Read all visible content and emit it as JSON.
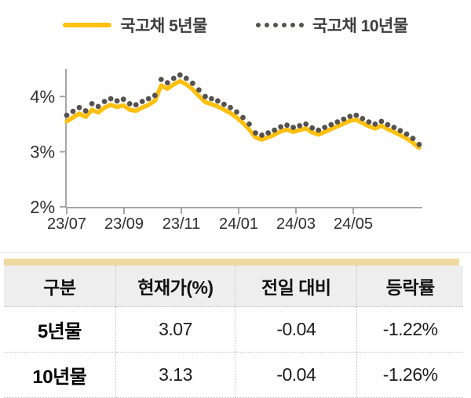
{
  "accent_colors": {
    "line_yellow": "#FFC010",
    "dot_gray": "#575150",
    "axis_gray": "#A6A6A6",
    "tan_bar": "#F0D9A2",
    "header_bg": "#EEEEEE"
  },
  "chart_data": {
    "type": "line",
    "title": "",
    "xlabel": "",
    "ylabel": "",
    "grid": false,
    "legend_position": "top",
    "ylim": [
      2,
      4.5
    ],
    "y_ticks": [
      {
        "value": 4,
        "label": "4%"
      },
      {
        "value": 3,
        "label": "3%"
      },
      {
        "value": 2,
        "label": "2%"
      }
    ],
    "x_tick_labels": [
      "23/07",
      "23/09",
      "23/11",
      "24/01",
      "24/03",
      "24/05"
    ],
    "x_tick_month_offsets": [
      0,
      2,
      4,
      6,
      8,
      10
    ],
    "x_span_months": 12.3,
    "series": [
      {
        "name": "국고채 5년물",
        "style": "line",
        "color": "#FFC010",
        "values": [
          3.55,
          3.62,
          3.69,
          3.63,
          3.76,
          3.71,
          3.8,
          3.85,
          3.81,
          3.84,
          3.76,
          3.74,
          3.8,
          3.85,
          3.92,
          4.2,
          4.14,
          4.22,
          4.28,
          4.22,
          4.13,
          4.01,
          3.9,
          3.86,
          3.82,
          3.76,
          3.7,
          3.62,
          3.52,
          3.4,
          3.26,
          3.22,
          3.26,
          3.31,
          3.37,
          3.4,
          3.36,
          3.39,
          3.42,
          3.35,
          3.31,
          3.36,
          3.41,
          3.46,
          3.51,
          3.56,
          3.58,
          3.52,
          3.46,
          3.42,
          3.47,
          3.41,
          3.36,
          3.3,
          3.24,
          3.16,
          3.07
        ]
      },
      {
        "name": "국고채 10년물",
        "style": "dots",
        "color": "#575150",
        "values": [
          3.66,
          3.73,
          3.8,
          3.74,
          3.87,
          3.82,
          3.91,
          3.96,
          3.92,
          3.95,
          3.87,
          3.85,
          3.91,
          3.96,
          4.02,
          4.31,
          4.25,
          4.33,
          4.39,
          4.33,
          4.24,
          4.12,
          4.0,
          3.96,
          3.92,
          3.86,
          3.8,
          3.72,
          3.62,
          3.5,
          3.34,
          3.3,
          3.34,
          3.39,
          3.45,
          3.48,
          3.44,
          3.47,
          3.5,
          3.43,
          3.39,
          3.44,
          3.49,
          3.54,
          3.59,
          3.64,
          3.66,
          3.6,
          3.54,
          3.5,
          3.55,
          3.49,
          3.44,
          3.38,
          3.32,
          3.24,
          3.13
        ]
      }
    ]
  },
  "table": {
    "columns": [
      "구분",
      "현재가(%)",
      "전일 대비",
      "등락률"
    ],
    "rows": [
      {
        "label": "5년물",
        "current": "3.07",
        "change": "-0.04",
        "pct": "-1.22%"
      },
      {
        "label": "10년물",
        "current": "3.13",
        "change": "-0.04",
        "pct": "-1.26%"
      }
    ]
  }
}
